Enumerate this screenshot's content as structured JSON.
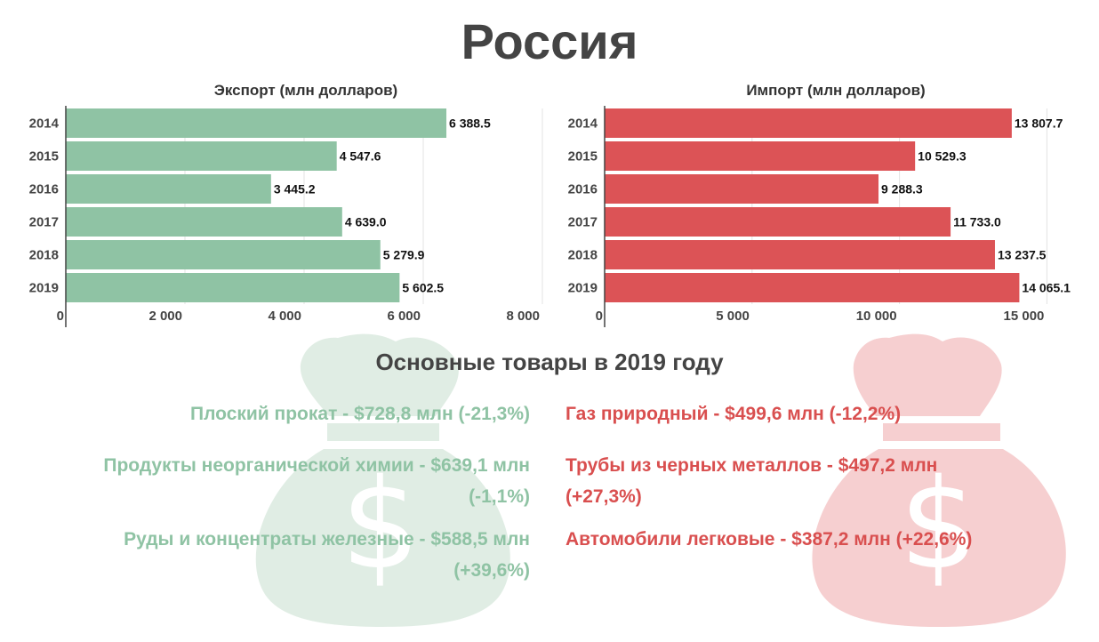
{
  "title": "Россия",
  "subtitle": "Основные товары в 2019 году",
  "colors": {
    "export": "#8fc3a4",
    "import": "#dc5356",
    "bag_export": "#e0ede4",
    "bag_import": "#f6cfd0"
  },
  "icons": {
    "bag_left": "money-bag-dollar-icon",
    "bag_right": "money-bag-dollar-icon"
  },
  "chart_data": [
    {
      "type": "bar",
      "orientation": "horizontal",
      "title": "Экспорт (млн долларов)",
      "categories": [
        "2014",
        "2015",
        "2016",
        "2017",
        "2018",
        "2019"
      ],
      "values": [
        6388.5,
        4547.6,
        3445.2,
        4639.0,
        5279.9,
        5602.5
      ],
      "value_labels": [
        "6 388.5",
        "4 547.6",
        "3 445.2",
        "4 639.0",
        "5 279.9",
        "5 602.5"
      ],
      "xlim": [
        0,
        8000
      ],
      "ticks": [
        0,
        2000,
        4000,
        6000,
        8000
      ],
      "tick_labels": [
        "0",
        "2 000",
        "4 000",
        "6 000",
        "8 000"
      ],
      "grid": true
    },
    {
      "type": "bar",
      "orientation": "horizontal",
      "title": "Импорт (млн долларов)",
      "categories": [
        "2014",
        "2015",
        "2016",
        "2017",
        "2018",
        "2019"
      ],
      "values": [
        13807.7,
        10529.3,
        9288.3,
        11733.0,
        13237.5,
        14065.1
      ],
      "value_labels": [
        "13 807.7",
        "10 529.3",
        "9 288.3",
        "11 733.0",
        "13 237.5",
        "14 065.1"
      ],
      "xlim": [
        0,
        15500
      ],
      "ticks": [
        0,
        5000,
        10000,
        15000
      ],
      "tick_labels": [
        "0",
        "5 000",
        "10 000",
        "15 000"
      ],
      "grid": true
    }
  ],
  "goods": {
    "export": [
      "Плоский прокат - $728,8 млн (-21,3%)",
      "Продукты неорганической химии - $639,1 млн (-1,1%)",
      "Руды и концентраты железные - $588,5 млн (+39,6%)"
    ],
    "import": [
      "Газ природный - $499,6 млн (-12,2%)",
      "Трубы из черных металлов - $497,2 млн (+27,3%)",
      "Автомобили легковые - $387,2 млн (+22,6%)"
    ]
  }
}
